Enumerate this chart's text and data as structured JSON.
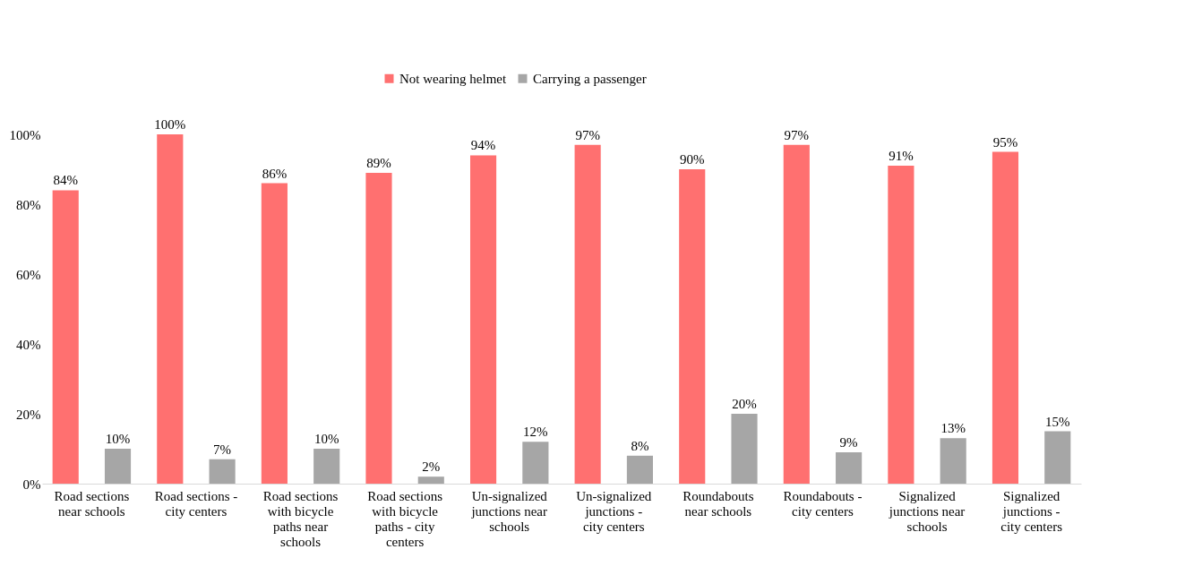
{
  "chart_data": {
    "type": "bar",
    "categories": [
      "Road sections near schools",
      "Road sections - city centers",
      "Road sections with bicycle paths near schools",
      "Road sections with bicycle paths - city centers",
      "Un-signalized junctions near schools",
      "Un-signalized junctions - city centers",
      "Roundabouts near schools",
      "Roundabouts - city centers",
      "Signalized junctions near schools",
      "Signalized junctions - city centers"
    ],
    "series": [
      {
        "name": "Not wearing helmet",
        "color": "#ff7070",
        "values": [
          84,
          100,
          86,
          89,
          94,
          97,
          90,
          97,
          91,
          95
        ],
        "value_labels": [
          "84%",
          "100%",
          "86%",
          "89%",
          "94%",
          "97%",
          "90%",
          "97%",
          "91%",
          "95%"
        ]
      },
      {
        "name": "Carrying a passenger",
        "color": "#a6a6a6",
        "values": [
          10,
          7,
          10,
          2,
          12,
          8,
          20,
          9,
          13,
          15
        ],
        "value_labels": [
          "10%",
          "7%",
          "10%",
          "2%",
          "12%",
          "8%",
          "20%",
          "9%",
          "13%",
          "15%"
        ]
      }
    ],
    "ylim": [
      0,
      100
    ],
    "yticks": [
      {
        "value": 0,
        "label": "0%"
      },
      {
        "value": 20,
        "label": "20%"
      },
      {
        "value": 40,
        "label": "40%"
      },
      {
        "value": 60,
        "label": "60%"
      },
      {
        "value": 80,
        "label": "80%"
      },
      {
        "value": 100,
        "label": "100%"
      }
    ],
    "grid": false,
    "legend": "top"
  }
}
